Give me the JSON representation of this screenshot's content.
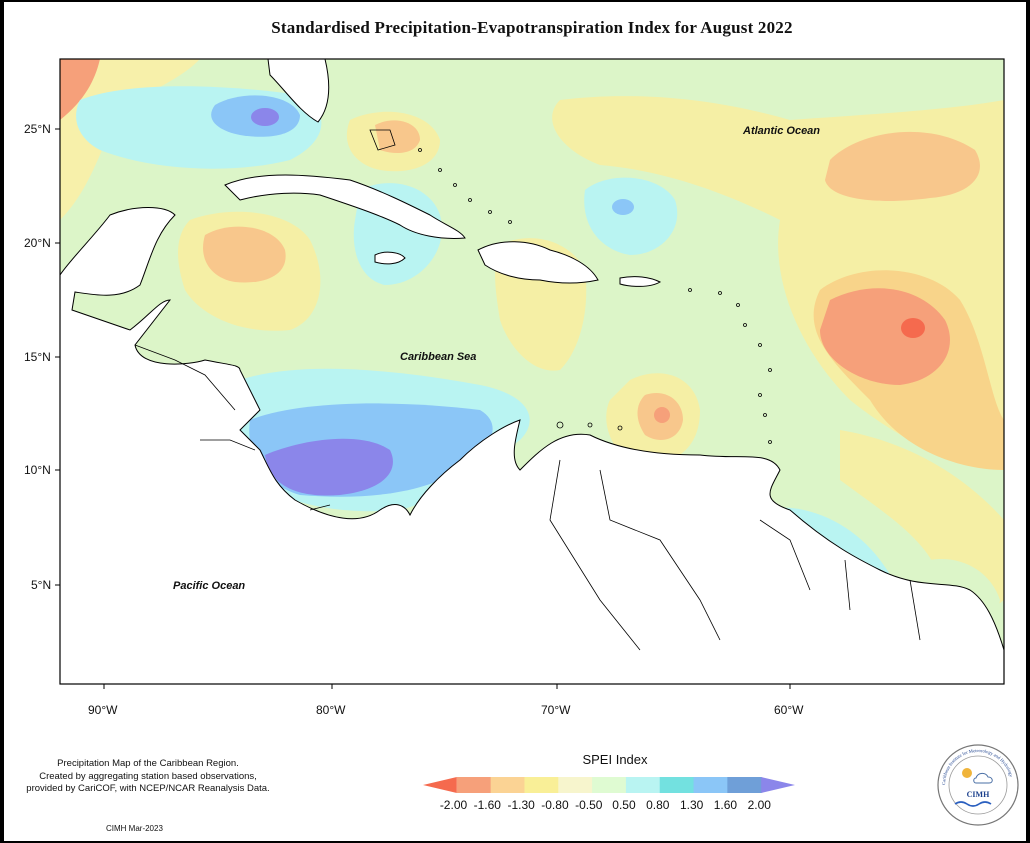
{
  "title": "Standardised Precipitation-Evapotranspiration Index for August 2022",
  "map": {
    "latitudes": [
      "25°N",
      "20°N",
      "15°N",
      "10°N",
      "5°N"
    ],
    "longitudes": [
      "90°W",
      "80°W",
      "70°W",
      "60°W"
    ],
    "labels": {
      "atlantic": "Atlantic Ocean",
      "caribbean": "Caribbean Sea",
      "pacific": "Pacific Ocean"
    }
  },
  "legend": {
    "title": "SPEI Index",
    "ticks": [
      "-2.00",
      "-1.60",
      "-1.30",
      "-0.80",
      "-0.50",
      "0.50",
      "0.80",
      "1.30",
      "1.60",
      "2.00"
    ],
    "colors": [
      "#f56a4e",
      "#f6a07a",
      "#fbd394",
      "#f9ef97",
      "#f7f5cd",
      "#dffbd2",
      "#b9f4f2",
      "#73e1e0",
      "#8bc6f7",
      "#6f9fd8",
      "#8b86ea"
    ]
  },
  "credits": {
    "line1": "Precipitation Map of the Caribbean Region.",
    "line2": "Created by aggregating station based observations,",
    "line3": "provided by CariCOF, with NCEP/NCAR Reanalysis Data.",
    "stamp": "CIMH Mar-2023"
  },
  "logo": {
    "text": "CIMH",
    "ring_text": "Caribbean Institute for Meteorology and Hydrology"
  }
}
